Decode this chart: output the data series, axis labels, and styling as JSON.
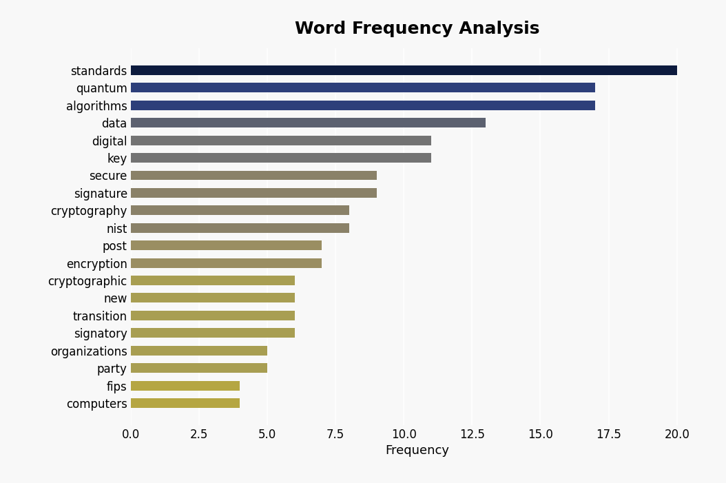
{
  "title": "Word Frequency Analysis",
  "xlabel": "Frequency",
  "categories": [
    "computers",
    "fips",
    "party",
    "organizations",
    "signatory",
    "transition",
    "new",
    "cryptographic",
    "encryption",
    "post",
    "nist",
    "cryptography",
    "signature",
    "secure",
    "key",
    "digital",
    "data",
    "algorithms",
    "quantum",
    "standards"
  ],
  "values": [
    4,
    4,
    5,
    5,
    6,
    6,
    6,
    6,
    7,
    7,
    8,
    8,
    9,
    9,
    11,
    11,
    13,
    17,
    17,
    20
  ],
  "bar_colors": [
    "#b5a642",
    "#b5a642",
    "#a89e52",
    "#a89e52",
    "#a89e52",
    "#a89e52",
    "#a89e52",
    "#a89e52",
    "#9a8e62",
    "#9a8e62",
    "#8a8168",
    "#8a8168",
    "#8a8168",
    "#8a8168",
    "#737373",
    "#737373",
    "#5c6170",
    "#2d3f7a",
    "#2d3f7a",
    "#0d1b3e"
  ],
  "background_color": "#f8f8f8",
  "plot_background": "#f8f8f8",
  "xlim": [
    0,
    21
  ],
  "xticks": [
    0.0,
    2.5,
    5.0,
    7.5,
    10.0,
    12.5,
    15.0,
    17.5,
    20.0
  ],
  "title_fontsize": 18,
  "label_fontsize": 12,
  "figsize": [
    10.54,
    7.01
  ],
  "dpi": 100,
  "bar_height": 0.55
}
